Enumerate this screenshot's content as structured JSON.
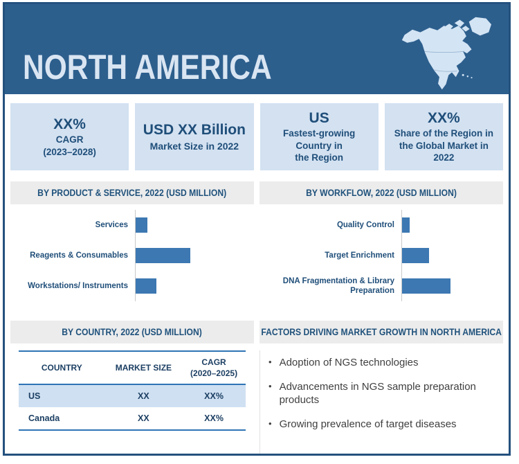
{
  "ui": {
    "banner": {
      "title": "NORTH AMERICA",
      "map_icon": "north-america-map-icon",
      "bg_color": "#2d5f8d",
      "title_color": "#d9e5f2"
    },
    "stats": [
      {
        "big": "XX%",
        "sub": "CAGR\n(2023–2028)"
      },
      {
        "big": "USD XX Billion",
        "sub": "Market Size in 2022"
      },
      {
        "big": "US",
        "sub": "Fastest-growing Country in\nthe Region"
      },
      {
        "big": "XX%",
        "sub": "Share of the Region in\nthe Global Market in 2022"
      }
    ],
    "factors": {
      "title": "FACTORS DRIVING MARKET GROWTH IN NORTH AMERICA",
      "bullet_char": "•",
      "bullets": [
        "Adoption of NGS technologies",
        "Advancements in NGS sample preparation products",
        "Growing prevalence of target diseases"
      ]
    },
    "colors": {
      "accent_navy": "#1f4e79",
      "banner_blue": "#2d5f8d",
      "bar_blue": "#3d78b2",
      "stat_box_bg": "#d3e1f1",
      "strip_bg": "#ececec",
      "table_rule_blue": "#2e74b5",
      "row_highlight_bg": "#cfe0f2",
      "frame_border": "#24517e"
    }
  },
  "chart_data": [
    {
      "type": "bar",
      "orientation": "horizontal",
      "title": "BY PRODUCT & SERVICE, 2022 (USD MILLION)",
      "categories": [
        "Services",
        "Reagents & Consumables",
        "Workstations/ Instruments"
      ],
      "values_relative": [
        22,
        100,
        38
      ],
      "xlabel": "",
      "ylabel": "",
      "legend": false,
      "grid": false,
      "note": "Numeric values masked as XX in source image; bar lengths are relative estimates with Reagents & Consumables = 100"
    },
    {
      "type": "bar",
      "orientation": "horizontal",
      "title": "BY WORKFLOW, 2022 (USD MILLION)",
      "categories": [
        "Quality Control",
        "Target Enrichment",
        "DNA Fragmentation & Library Preparation"
      ],
      "values_relative": [
        15,
        55,
        100
      ],
      "xlabel": "",
      "ylabel": "",
      "legend": false,
      "grid": false,
      "note": "Numeric values masked as XX in source image; bar lengths are relative estimates with DNA Fragmentation & Library Preparation = 100"
    },
    {
      "type": "table",
      "title": "BY COUNTRY, 2022 (USD MILLION)",
      "columns": [
        "COUNTRY",
        "MARKET SIZE",
        "CAGR\n(2020–2025)"
      ],
      "rows": [
        [
          "US",
          "XX",
          "XX%"
        ],
        [
          "Canada",
          "XX",
          "XX%"
        ]
      ]
    }
  ]
}
